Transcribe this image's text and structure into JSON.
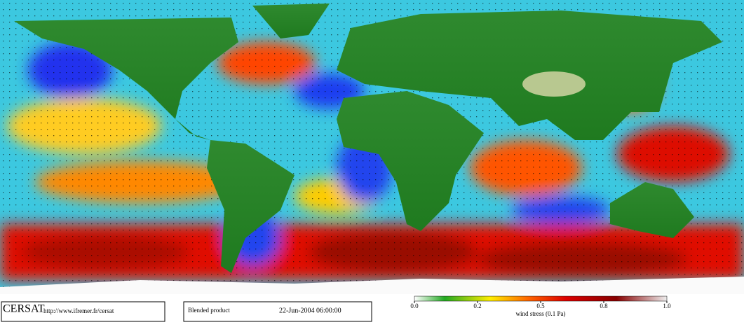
{
  "stamp": {
    "brand": "CERSAT",
    "url": "http://www.ifremer.fr/cersat",
    "product": "Blended product",
    "datetime": "22-Jun-2004 06:00:00"
  },
  "colorbar": {
    "ticks": [
      "0.0",
      "0.2",
      "0.5",
      "0.8",
      "1.0"
    ],
    "label": "wind stress (0.1 Pa)"
  }
}
